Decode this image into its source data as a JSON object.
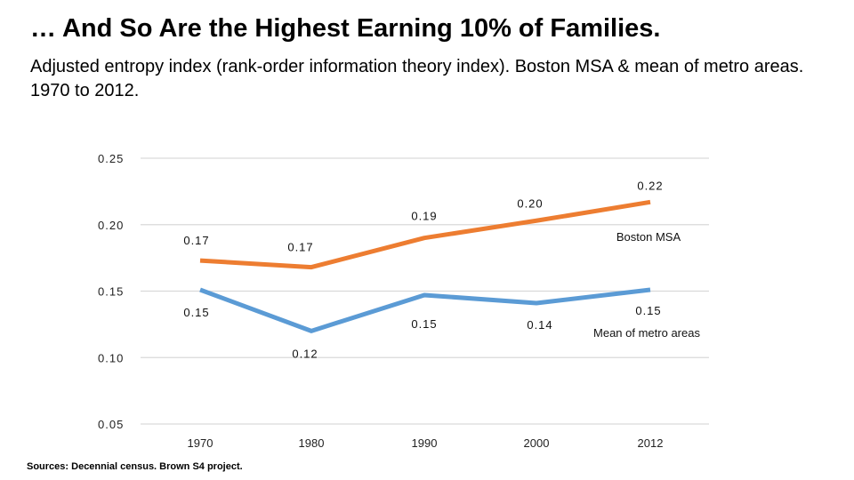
{
  "title": "… And So Are the Highest Earning 10% of Families.",
  "subtitle": "Adjusted entropy index (rank-order information theory index). Boston MSA & mean of metro areas. 1970 to 2012.",
  "source": "Sources: Decennial census. Brown S4 project.",
  "chart_data": {
    "type": "line",
    "title": "",
    "xlabel": "",
    "ylabel": "",
    "categories": [
      "1970",
      "1980",
      "1990",
      "2000",
      "2012"
    ],
    "ylim": [
      0.05,
      0.25
    ],
    "yticks": [
      "0.05",
      "0.10",
      "0.15",
      "0.20",
      "0.25"
    ],
    "grid": "horizontal",
    "legend": "none (series labeled at line ends)",
    "series": [
      {
        "name": "Boston MSA",
        "color": "#ED7D31",
        "values": [
          0.173,
          0.168,
          0.19,
          0.203,
          0.217
        ],
        "labels": [
          "0.17",
          "0.17",
          "0.19",
          "0.20",
          "0.22"
        ]
      },
      {
        "name": "Mean of metro areas",
        "color": "#5B9BD5",
        "values": [
          0.151,
          0.12,
          0.147,
          0.141,
          0.151
        ],
        "labels": [
          "0.15",
          "0.12",
          "0.15",
          "0.14",
          "0.15"
        ]
      }
    ]
  }
}
